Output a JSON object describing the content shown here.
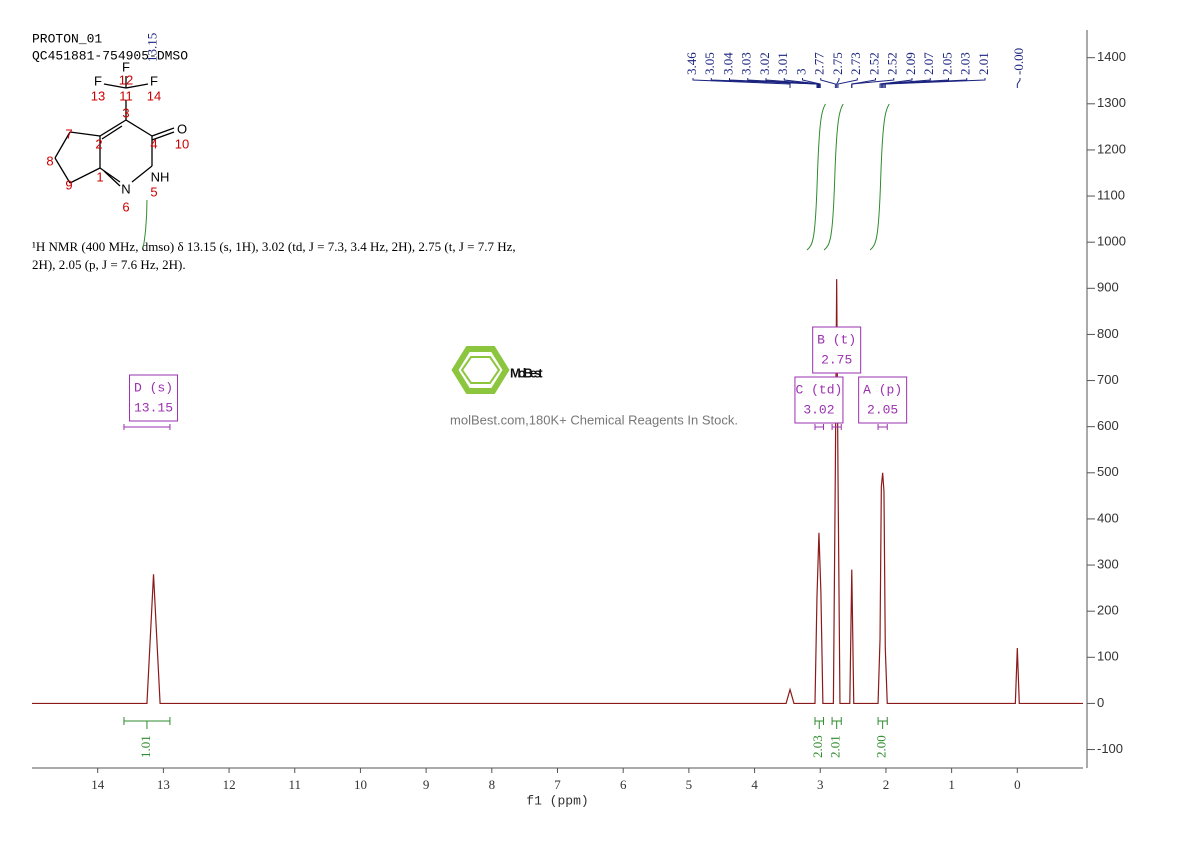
{
  "chart_data": {
    "type": "line",
    "title": "PROTON_01",
    "subtitle": "QC451881-754905-DMSO",
    "annotation": [
      "¹H NMR (400 MHz, dmso) δ 13.15 (s, 1H), 3.02 (td, J = 7.3, 3.4 Hz, 2H), 2.75 (t, J = 7.7 Hz,",
      "2H), 2.05 (p, J = 7.6 Hz, 2H)."
    ],
    "xlabel": "f1 (ppm)",
    "x": [
      15,
      13.25,
      13.15,
      13.05,
      3.52,
      3.46,
      3.4,
      3.08,
      3.05,
      3.02,
      2.99,
      2.96,
      2.8,
      2.77,
      2.75,
      2.73,
      2.7,
      2.55,
      2.52,
      2.49,
      2.12,
      2.09,
      2.07,
      2.05,
      2.03,
      2.01,
      1.98,
      0.03,
      0,
      -0.03,
      -1
    ],
    "values": [
      0,
      0,
      280,
      0,
      0,
      30,
      0,
      0,
      230,
      370,
      240,
      0,
      0,
      510,
      920,
      500,
      0,
      0,
      290,
      0,
      0,
      140,
      470,
      500,
      460,
      120,
      0,
      0,
      120,
      0,
      0
    ],
    "color": "#8b1a1a",
    "xlim": [
      15,
      -1
    ],
    "xticks": [
      14,
      13,
      12,
      11,
      10,
      9,
      8,
      7,
      6,
      5,
      4,
      3,
      2,
      1,
      0
    ],
    "ylim": [
      -140,
      1460
    ],
    "yticks": [
      -100,
      0,
      100,
      200,
      300,
      400,
      500,
      600,
      700,
      800,
      900,
      1000,
      1100,
      1200,
      1300,
      1400
    ],
    "peak_label_single": 13.15,
    "peak_labels": [
      3.46,
      3.05,
      3.04,
      3.03,
      3.02,
      3.01,
      3.0,
      2.77,
      2.75,
      2.73,
      2.52,
      2.52,
      2.09,
      2.07,
      2.05,
      2.03,
      2.01,
      {
        "value": 0,
        "label": "-0.00"
      }
    ],
    "multiplets": [
      {
        "label": "D (s)",
        "shift": 13.15,
        "range": [
          13.6,
          12.9
        ]
      },
      {
        "label": "C (td)",
        "shift": 3.02,
        "range": [
          3.08,
          2.95
        ]
      },
      {
        "label": "B (t)",
        "shift": 2.75,
        "range": [
          2.82,
          2.68
        ]
      },
      {
        "label": "A (p)",
        "shift": 2.05,
        "range": [
          2.12,
          1.98
        ]
      }
    ],
    "integrals": [
      {
        "range": [
          13.6,
          12.9
        ],
        "value": 1.01
      },
      {
        "range": [
          3.08,
          2.95
        ],
        "value": 2.03
      },
      {
        "range": [
          2.82,
          2.68
        ],
        "value": 2.01
      },
      {
        "range": [
          2.12,
          1.98
        ],
        "value": {
          "value": 2,
          "label": "2.00"
        }
      }
    ],
    "structure": {
      "atoms": [
        {
          "symbol": "F",
          "number": 12
        },
        {
          "symbol": "F",
          "number": 13
        },
        {
          "symbol": "F",
          "number": 14
        },
        {
          "number": 11
        },
        {
          "number": 3
        },
        {
          "number": 4
        },
        {
          "symbol": "O",
          "number": 10
        },
        {
          "symbol": "NH",
          "number": 5
        },
        {
          "symbol": "N",
          "number": 6
        },
        {
          "number": 1
        },
        {
          "number": 2
        },
        {
          "number": 7
        },
        {
          "number": 8
        },
        {
          "number": 9
        }
      ]
    },
    "watermark": {
      "brand": "MolBest",
      "tagline": "molBest.com,180K+ Chemical Reagents In Stock."
    }
  }
}
